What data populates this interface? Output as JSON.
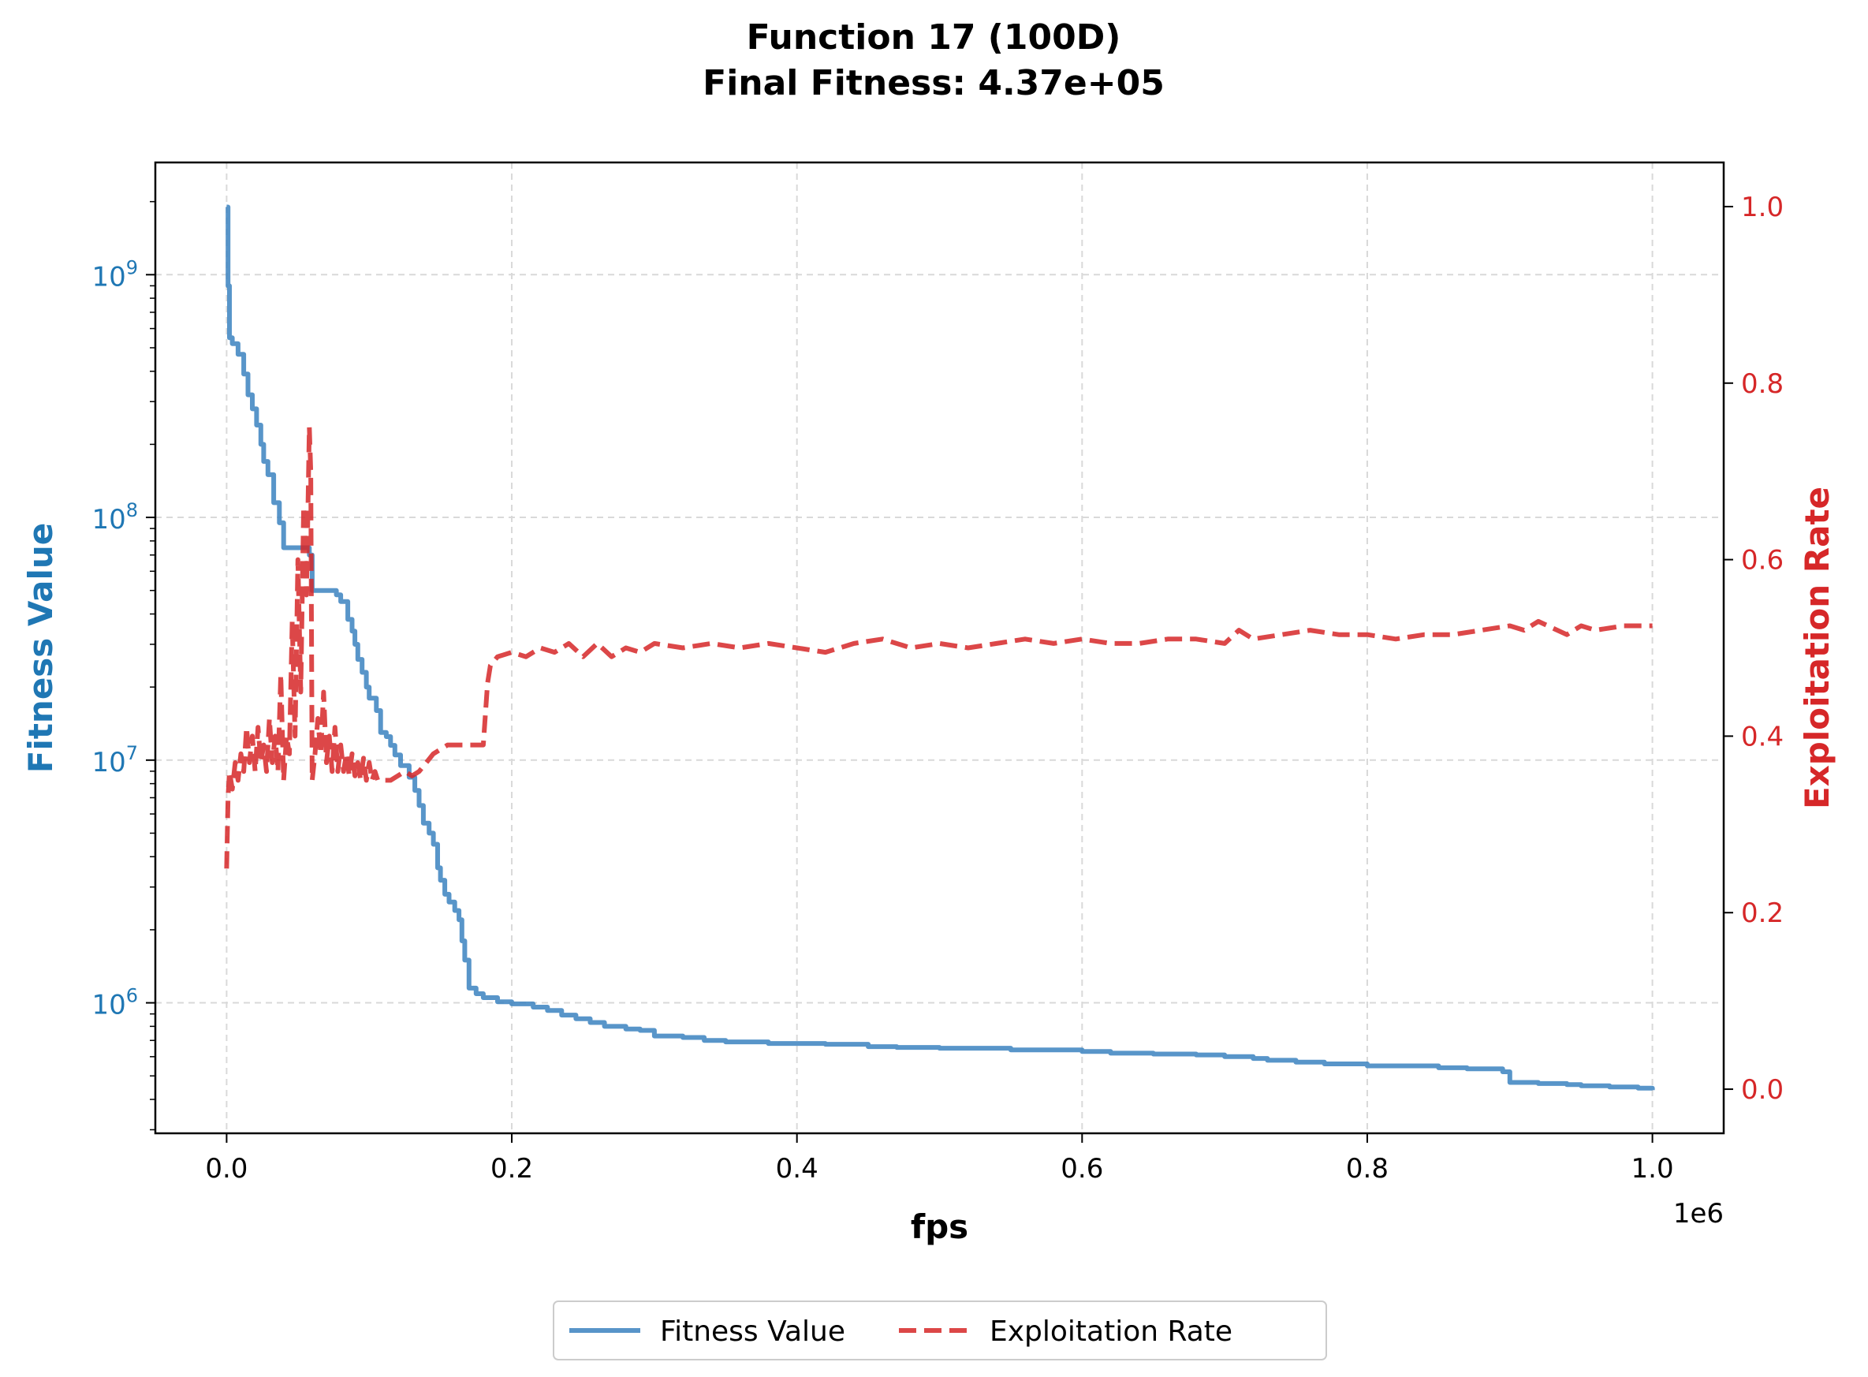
{
  "chart_data": {
    "type": "line",
    "title": "Function 17 (100D)",
    "subtitle": "Final Fitness: 4.37e+05",
    "xlabel": "fps",
    "x_offset_label": "1e6",
    "xlim": [
      -50000,
      1050000
    ],
    "x_ticks": [
      0,
      200000,
      400000,
      600000,
      800000,
      1000000
    ],
    "x_tick_labels": [
      "0.0",
      "0.2",
      "0.4",
      "0.6",
      "0.8",
      "1.0"
    ],
    "grid": true,
    "legend_position": "bottom-center",
    "y_left": {
      "label": "Fitness Value",
      "scale": "log",
      "lim": [
        290000,
        2900000000
      ],
      "ticks": [
        1000000,
        10000000,
        100000000,
        1000000000
      ],
      "tick_labels": [
        {
          "base": "10",
          "exp": "6"
        },
        {
          "base": "10",
          "exp": "7"
        },
        {
          "base": "10",
          "exp": "8"
        },
        {
          "base": "10",
          "exp": "9"
        }
      ],
      "color": "#1f77b4"
    },
    "y_right": {
      "label": "Exploitation Rate",
      "scale": "linear",
      "lim": [
        -0.05,
        1.05
      ],
      "ticks": [
        0.0,
        0.2,
        0.4,
        0.6,
        0.8,
        1.0
      ],
      "tick_labels": [
        "0.0",
        "0.2",
        "0.4",
        "0.6",
        "0.8",
        "1.0"
      ],
      "color": "#d62728"
    },
    "series": [
      {
        "name": "Fitness Value",
        "axis": "left",
        "color": "#3b82c0",
        "style": "solid",
        "step": true,
        "x": [
          0,
          1000,
          2000,
          4000,
          8000,
          12000,
          15000,
          18000,
          21000,
          24000,
          26000,
          29000,
          33000,
          37000,
          40000,
          45000,
          50000,
          55000,
          58000,
          60000,
          70000,
          77000,
          80000,
          85000,
          88000,
          90000,
          92000,
          95000,
          98000,
          100000,
          105000,
          108000,
          112000,
          115000,
          118000,
          122000,
          128000,
          132000,
          135000,
          138000,
          142000,
          145000,
          148000,
          150000,
          153000,
          156000,
          160000,
          163000,
          165000,
          167000,
          170000,
          175000,
          180000,
          190000,
          200000,
          215000,
          225000,
          235000,
          245000,
          255000,
          265000,
          280000,
          290000,
          300000,
          320000,
          335000,
          350000,
          380000,
          420000,
          450000,
          470000,
          500000,
          550000,
          600000,
          620000,
          650000,
          680000,
          700000,
          720000,
          730000,
          750000,
          770000,
          800000,
          850000,
          870000,
          895000,
          900000,
          920000,
          940000,
          950000,
          970000,
          990000,
          1000000
        ],
        "values": [
          1900000000,
          900000000,
          550000000,
          520000000,
          470000000,
          390000000,
          320000000,
          280000000,
          240000000,
          200000000,
          170000000,
          150000000,
          115000000,
          95000000,
          75000000,
          75000000,
          75000000,
          75000000,
          70000000,
          50000000,
          50000000,
          48000000,
          45000000,
          38000000,
          34000000,
          30000000,
          26000000,
          23000000,
          20000000,
          18000000,
          16000000,
          13000000,
          12500000,
          11500000,
          10500000,
          9500000,
          8500000,
          7500000,
          6500000,
          5500000,
          5000000,
          4500000,
          3600000,
          3200000,
          2800000,
          2600000,
          2400000,
          2200000,
          1800000,
          1500000,
          1150000,
          1090000,
          1050000,
          1010000,
          990000,
          960000,
          930000,
          890000,
          860000,
          830000,
          800000,
          780000,
          770000,
          730000,
          720000,
          700000,
          690000,
          680000,
          675000,
          660000,
          655000,
          650000,
          640000,
          630000,
          620000,
          615000,
          610000,
          600000,
          590000,
          580000,
          570000,
          560000,
          550000,
          540000,
          535000,
          520000,
          470000,
          465000,
          460000,
          455000,
          450000,
          445000,
          437000
        ]
      },
      {
        "name": "Exploitation Rate",
        "axis": "right",
        "color": "#d62728",
        "style": "dashed",
        "x": [
          0,
          1000,
          2000,
          4000,
          6000,
          8000,
          10000,
          12000,
          14000,
          16000,
          18000,
          20000,
          22000,
          24000,
          26000,
          28000,
          30000,
          32000,
          34000,
          36000,
          38000,
          40000,
          42000,
          44000,
          46000,
          48000,
          50000,
          52000,
          54000,
          56000,
          58000,
          59000,
          60000,
          62000,
          64000,
          66000,
          68000,
          70000,
          72000,
          74000,
          76000,
          78000,
          80000,
          82000,
          84000,
          86000,
          88000,
          90000,
          92000,
          94000,
          96000,
          98000,
          100000,
          102000,
          104000,
          106000,
          110000,
          115000,
          120000,
          125000,
          130000,
          135000,
          140000,
          145000,
          150000,
          155000,
          160000,
          165000,
          170000,
          175000,
          180000,
          183000,
          185000,
          190000,
          200000,
          210000,
          220000,
          230000,
          240000,
          250000,
          260000,
          270000,
          280000,
          290000,
          300000,
          320000,
          340000,
          360000,
          380000,
          400000,
          420000,
          440000,
          460000,
          480000,
          500000,
          520000,
          540000,
          560000,
          580000,
          600000,
          620000,
          640000,
          660000,
          680000,
          700000,
          710000,
          720000,
          740000,
          760000,
          780000,
          800000,
          820000,
          840000,
          860000,
          880000,
          900000,
          910000,
          920000,
          940000,
          950000,
          960000,
          980000,
          1000000
        ],
        "values": [
          0.25,
          0.33,
          0.36,
          0.34,
          0.37,
          0.35,
          0.38,
          0.36,
          0.41,
          0.37,
          0.4,
          0.36,
          0.41,
          0.37,
          0.39,
          0.36,
          0.42,
          0.37,
          0.4,
          0.36,
          0.47,
          0.35,
          0.4,
          0.38,
          0.53,
          0.4,
          0.6,
          0.45,
          0.66,
          0.56,
          0.75,
          0.7,
          0.35,
          0.38,
          0.42,
          0.38,
          0.45,
          0.37,
          0.4,
          0.36,
          0.41,
          0.36,
          0.39,
          0.36,
          0.38,
          0.355,
          0.38,
          0.355,
          0.37,
          0.35,
          0.375,
          0.35,
          0.37,
          0.35,
          0.36,
          0.35,
          0.35,
          0.35,
          0.355,
          0.36,
          0.355,
          0.36,
          0.37,
          0.38,
          0.385,
          0.39,
          0.39,
          0.39,
          0.39,
          0.39,
          0.39,
          0.46,
          0.48,
          0.49,
          0.495,
          0.49,
          0.5,
          0.495,
          0.505,
          0.49,
          0.505,
          0.49,
          0.5,
          0.495,
          0.505,
          0.5,
          0.505,
          0.5,
          0.505,
          0.5,
          0.495,
          0.505,
          0.51,
          0.5,
          0.505,
          0.5,
          0.505,
          0.51,
          0.505,
          0.51,
          0.505,
          0.505,
          0.51,
          0.51,
          0.505,
          0.52,
          0.51,
          0.515,
          0.52,
          0.515,
          0.515,
          0.51,
          0.515,
          0.515,
          0.52,
          0.525,
          0.52,
          0.53,
          0.515,
          0.525,
          0.52,
          0.525,
          0.525
        ]
      }
    ]
  }
}
